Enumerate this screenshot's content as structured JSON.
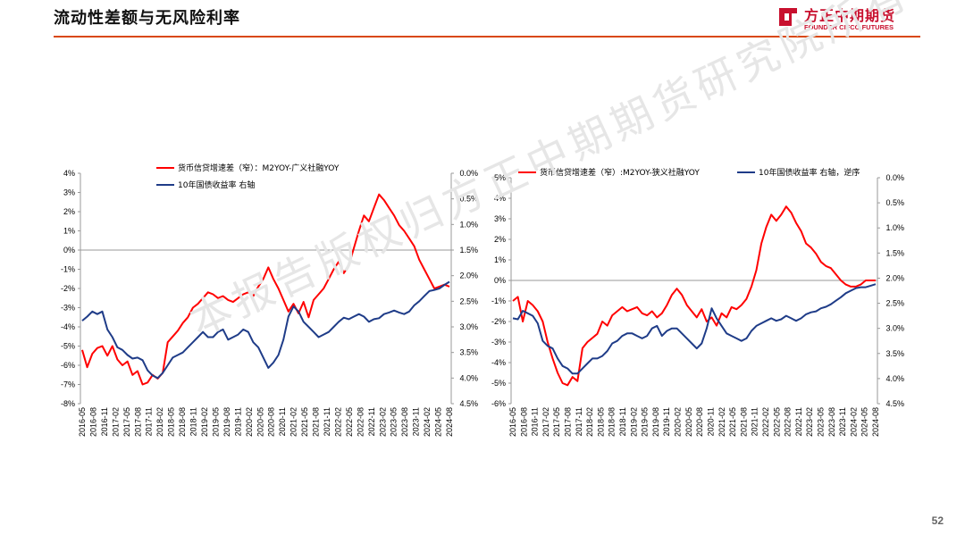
{
  "header": {
    "title": "流动性差额与无风险利率",
    "logo_cn": "方正中期期货",
    "logo_en": "FOUNDER CIFCO FUTURES"
  },
  "watermark": "本报告版权归方正中期期货研究院所有",
  "page_number": "52",
  "colors": {
    "red_series": "#ff0000",
    "blue_series": "#1f3c88",
    "accent": "#d9480f"
  },
  "chart_data": [
    {
      "type": "line",
      "x_tick_labels": [
        "2016-05",
        "2016-08",
        "2016-11",
        "2017-02",
        "2017-05",
        "2017-08",
        "2017-11",
        "2018-02",
        "2018-05",
        "2018-08",
        "2018-11",
        "2019-02",
        "2019-05",
        "2019-08",
        "2019-11",
        "2020-02",
        "2020-05",
        "2020-08",
        "2020-11",
        "2021-02",
        "2021-05",
        "2021-08",
        "2021-11",
        "2022-02",
        "2022-05",
        "2022-08",
        "2022-11",
        "2023-02",
        "2023-05",
        "2023-08",
        "2023-11",
        "2024-02",
        "2024-05",
        "2024-08"
      ],
      "y_left": {
        "min": -8,
        "max": 4,
        "ticks": [
          "4%",
          "3%",
          "2%",
          "1%",
          "0%",
          "-1%",
          "-2%",
          "-3%",
          "-4%",
          "-5%",
          "-6%",
          "-7%",
          "-8%"
        ]
      },
      "y_right": {
        "min": 0,
        "max": 4.5,
        "inverted": true,
        "ticks": [
          "0.0%",
          "0.5%",
          "1.0%",
          "1.5%",
          "2.0%",
          "2.5%",
          "3.0%",
          "3.5%",
          "4.0%",
          "4.5%"
        ]
      },
      "series": [
        {
          "name": "货币信贷增速差（窄）：M2YOY-广义社融YOY",
          "axis": "left",
          "values": [
            -5.2,
            -6.1,
            -5.4,
            -5.1,
            -5.0,
            -5.5,
            -5.0,
            -5.7,
            -6.0,
            -5.8,
            -6.5,
            -6.3,
            -7.0,
            -6.9,
            -6.5,
            -6.7,
            -6.4,
            -4.8,
            -4.5,
            -4.2,
            -3.8,
            -3.5,
            -3.0,
            -2.8,
            -2.5,
            -2.2,
            -2.3,
            -2.5,
            -2.4,
            -2.6,
            -2.7,
            -2.5,
            -2.3,
            -2.2,
            -2.4,
            -1.9,
            -1.5,
            -0.9,
            -1.5,
            -2.0,
            -2.6,
            -3.2,
            -2.8,
            -3.3,
            -2.7,
            -3.5,
            -2.6,
            -2.3,
            -2.0,
            -1.5,
            -1.0,
            -0.6,
            -1.2,
            -0.8,
            0.1,
            1.0,
            1.8,
            1.5,
            2.2,
            2.9,
            2.6,
            2.2,
            1.8,
            1.3,
            1.0,
            0.6,
            0.2,
            -0.5,
            -1.0,
            -1.5,
            -2.0,
            -1.9,
            -1.8,
            -1.9
          ]
        },
        {
          "name": "10年国债收益率 右轴",
          "axis": "right",
          "values": [
            2.88,
            2.8,
            2.7,
            2.75,
            2.7,
            3.05,
            3.2,
            3.4,
            3.45,
            3.55,
            3.62,
            3.6,
            3.65,
            3.85,
            3.95,
            4.0,
            3.9,
            3.75,
            3.6,
            3.55,
            3.5,
            3.4,
            3.3,
            3.2,
            3.1,
            3.2,
            3.2,
            3.1,
            3.05,
            3.25,
            3.2,
            3.15,
            3.05,
            3.1,
            3.3,
            3.4,
            3.6,
            3.8,
            3.7,
            3.55,
            3.25,
            2.8,
            2.6,
            2.7,
            2.9,
            3.0,
            3.1,
            3.2,
            3.15,
            3.1,
            3.0,
            2.9,
            2.82,
            2.85,
            2.8,
            2.75,
            2.8,
            2.9,
            2.85,
            2.83,
            2.75,
            2.72,
            2.68,
            2.72,
            2.75,
            2.7,
            2.58,
            2.5,
            2.4,
            2.3,
            2.28,
            2.25,
            2.18,
            2.12
          ]
        }
      ]
    },
    {
      "type": "line",
      "x_tick_labels": [
        "2016-05",
        "2016-08",
        "2016-11",
        "2017-02",
        "2017-05",
        "2017-08",
        "2017-11",
        "2018-02",
        "2018-05",
        "2018-08",
        "2018-11",
        "2019-02",
        "2019-05",
        "2019-08",
        "2019-11",
        "2020-02",
        "2020-05",
        "2020-08",
        "2020-11",
        "2021-02",
        "2021-05",
        "2021-08",
        "2021-11",
        "2022-02",
        "2022-05",
        "2022-08",
        "2022-11",
        "2023-02",
        "2023-05",
        "2023-08",
        "2023-11",
        "2024-02",
        "2024-05",
        "2024-08"
      ],
      "y_left": {
        "min": -6,
        "max": 5,
        "ticks": [
          "5%",
          "4%",
          "3%",
          "2%",
          "1%",
          "0%",
          "-1%",
          "-2%",
          "-3%",
          "-4%",
          "-5%",
          "-6%"
        ]
      },
      "y_right": {
        "min": 0,
        "max": 4.5,
        "inverted": true,
        "ticks": [
          "0.0%",
          "0.5%",
          "1.0%",
          "1.5%",
          "2.0%",
          "2.5%",
          "3.0%",
          "3.5%",
          "4.0%",
          "4.5%"
        ]
      },
      "series": [
        {
          "name": "货币信贷增速差（窄）:M2YOY-狭义社融YOY",
          "axis": "left",
          "values": [
            -1.0,
            -0.8,
            -2.0,
            -1.0,
            -1.2,
            -1.5,
            -2.0,
            -3.0,
            -3.8,
            -4.5,
            -5.0,
            -5.1,
            -4.7,
            -4.9,
            -3.3,
            -3.0,
            -2.8,
            -2.6,
            -2.0,
            -2.2,
            -1.7,
            -1.5,
            -1.3,
            -1.5,
            -1.4,
            -1.3,
            -1.6,
            -1.7,
            -1.5,
            -1.8,
            -1.6,
            -1.2,
            -0.7,
            -0.4,
            -0.7,
            -1.2,
            -1.5,
            -1.8,
            -1.4,
            -2.0,
            -1.8,
            -2.2,
            -1.6,
            -1.8,
            -1.3,
            -1.4,
            -1.2,
            -0.9,
            -0.3,
            0.5,
            1.8,
            2.6,
            3.2,
            2.9,
            3.2,
            3.6,
            3.3,
            2.8,
            2.4,
            1.8,
            1.6,
            1.3,
            0.9,
            0.7,
            0.6,
            0.3,
            0.0,
            -0.2,
            -0.3,
            -0.3,
            -0.2,
            0.0,
            0.0,
            0.0
          ]
        },
        {
          "name": "10年国债收益率 右轴，逆序",
          "axis": "right",
          "values": [
            2.8,
            2.82,
            2.65,
            2.7,
            2.75,
            2.9,
            3.25,
            3.35,
            3.4,
            3.6,
            3.75,
            3.8,
            3.9,
            3.9,
            3.8,
            3.7,
            3.6,
            3.6,
            3.55,
            3.45,
            3.3,
            3.25,
            3.15,
            3.1,
            3.1,
            3.15,
            3.2,
            3.15,
            3.0,
            2.95,
            3.15,
            3.05,
            3.0,
            3.0,
            3.1,
            3.2,
            3.3,
            3.4,
            3.3,
            3.0,
            2.6,
            2.8,
            2.95,
            3.1,
            3.15,
            3.2,
            3.25,
            3.2,
            3.05,
            2.95,
            2.9,
            2.85,
            2.8,
            2.85,
            2.82,
            2.75,
            2.8,
            2.85,
            2.8,
            2.72,
            2.68,
            2.66,
            2.6,
            2.57,
            2.52,
            2.45,
            2.38,
            2.3,
            2.25,
            2.2,
            2.18,
            2.18,
            2.15,
            2.12
          ]
        }
      ]
    }
  ]
}
